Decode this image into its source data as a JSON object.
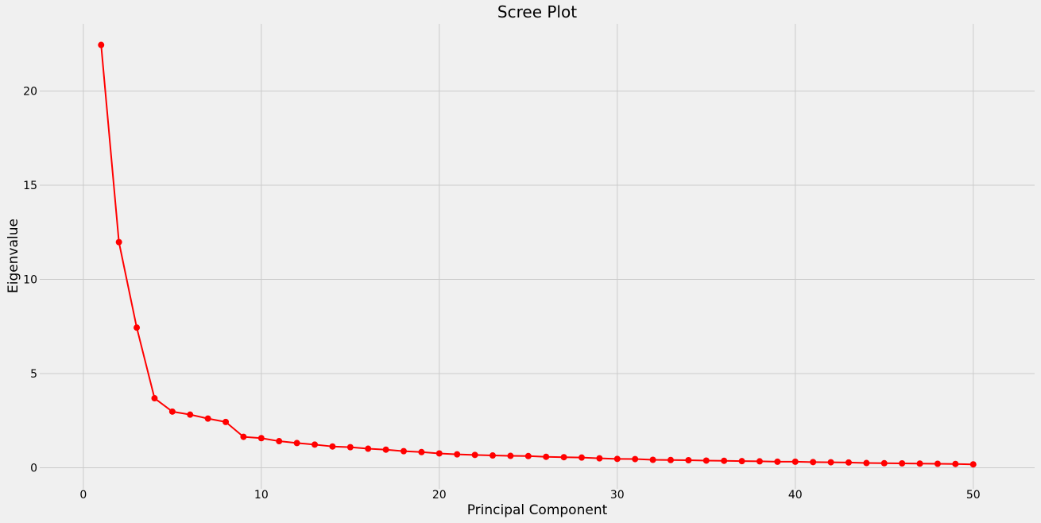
{
  "chart_data": {
    "type": "line",
    "title": "Scree Plot",
    "xlabel": "Principal Component",
    "ylabel": "Eigenvalue",
    "xlim": [
      -2.45,
      53.45
    ],
    "ylim": [
      -1.12,
      23.57
    ],
    "xticks": [
      0,
      10,
      20,
      30,
      40,
      50
    ],
    "yticks": [
      0,
      5,
      10,
      15,
      20
    ],
    "grid": true,
    "color": "#ff0000",
    "background": "#f0f0f0",
    "x": [
      1,
      2,
      3,
      4,
      5,
      6,
      7,
      8,
      9,
      10,
      11,
      12,
      13,
      14,
      15,
      16,
      17,
      18,
      19,
      20,
      21,
      22,
      23,
      24,
      25,
      26,
      27,
      28,
      29,
      30,
      31,
      32,
      33,
      34,
      35,
      36,
      37,
      38,
      39,
      40,
      41,
      42,
      43,
      44,
      45,
      46,
      47,
      48,
      49,
      50
    ],
    "y": [
      22.45,
      11.98,
      7.44,
      3.69,
      2.98,
      2.82,
      2.61,
      2.43,
      1.64,
      1.57,
      1.41,
      1.31,
      1.23,
      1.13,
      1.09,
      1.01,
      0.96,
      0.88,
      0.83,
      0.76,
      0.71,
      0.68,
      0.65,
      0.63,
      0.62,
      0.58,
      0.56,
      0.54,
      0.5,
      0.47,
      0.46,
      0.42,
      0.41,
      0.4,
      0.38,
      0.37,
      0.35,
      0.34,
      0.32,
      0.32,
      0.3,
      0.29,
      0.28,
      0.25,
      0.24,
      0.23,
      0.22,
      0.21,
      0.2,
      0.18
    ]
  }
}
